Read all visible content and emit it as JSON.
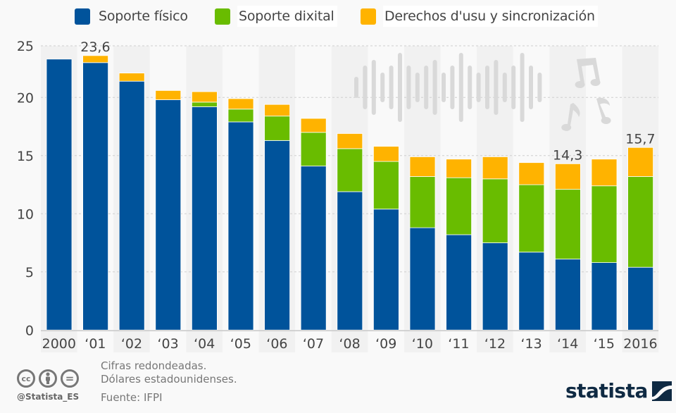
{
  "chart_data": {
    "type": "bar",
    "stacked": true,
    "title": "",
    "xlabel": "",
    "ylabel": "",
    "ylim": [
      0,
      25
    ],
    "yticks": [
      0,
      5,
      10,
      15,
      20,
      25
    ],
    "ytick_labels": [
      "0",
      "5",
      "10",
      "15",
      "20",
      "25"
    ],
    "grid": true,
    "legend_position": "top-center",
    "categories": [
      "2000",
      "‘01",
      "‘02",
      "‘03",
      "‘04",
      "‘05",
      "‘06",
      "‘07",
      "‘08",
      "‘09",
      "‘10",
      "‘11",
      "‘12",
      "‘13",
      "‘14",
      "‘15",
      "2016"
    ],
    "series": [
      {
        "name": "Soporte físico",
        "color": "#00539b",
        "values": [
          23.3,
          23.0,
          21.4,
          19.8,
          19.2,
          17.9,
          16.3,
          14.1,
          11.9,
          10.4,
          8.8,
          8.2,
          7.5,
          6.7,
          6.1,
          5.8,
          5.4
        ]
      },
      {
        "name": "Soporte dixital",
        "color": "#69bc00",
        "values": [
          0,
          0,
          0,
          0,
          0.4,
          1.1,
          2.1,
          2.9,
          3.7,
          4.1,
          4.4,
          4.9,
          5.5,
          5.8,
          6.0,
          6.6,
          7.8
        ]
      },
      {
        "name": "Derechos d'usu y sincronización",
        "color": "#ffb300",
        "values": [
          0,
          0.6,
          0.7,
          0.8,
          0.9,
          0.9,
          1.0,
          1.2,
          1.3,
          1.3,
          1.7,
          1.6,
          1.9,
          1.9,
          2.2,
          2.3,
          2.5
        ]
      }
    ],
    "annotations": [
      {
        "category": "‘01",
        "text": "23,6"
      },
      {
        "category": "‘14",
        "text": "14,3"
      },
      {
        "category": "2016",
        "text": "15,7"
      }
    ]
  },
  "legend": {
    "items": [
      {
        "label": "Soporte físico",
        "color": "#00539b"
      },
      {
        "label": "Soporte dixital",
        "color": "#69bc00"
      },
      {
        "label": "Derechos d'usu y sincronización",
        "color": "#ffb300"
      }
    ]
  },
  "footer": {
    "note_1": "Cifras redondeadas.",
    "note_2": "Dólares estadounidenses.",
    "source": "Fuente: IFPI",
    "handle": "@Statista_ES",
    "license_icons": [
      "cc-icon",
      "by-icon",
      "nd-icon"
    ],
    "cc_label": "cc",
    "nd_label": "="
  },
  "logo": {
    "text": "statista"
  },
  "decorations": [
    "waveform-icon",
    "music-notes-icon"
  ]
}
